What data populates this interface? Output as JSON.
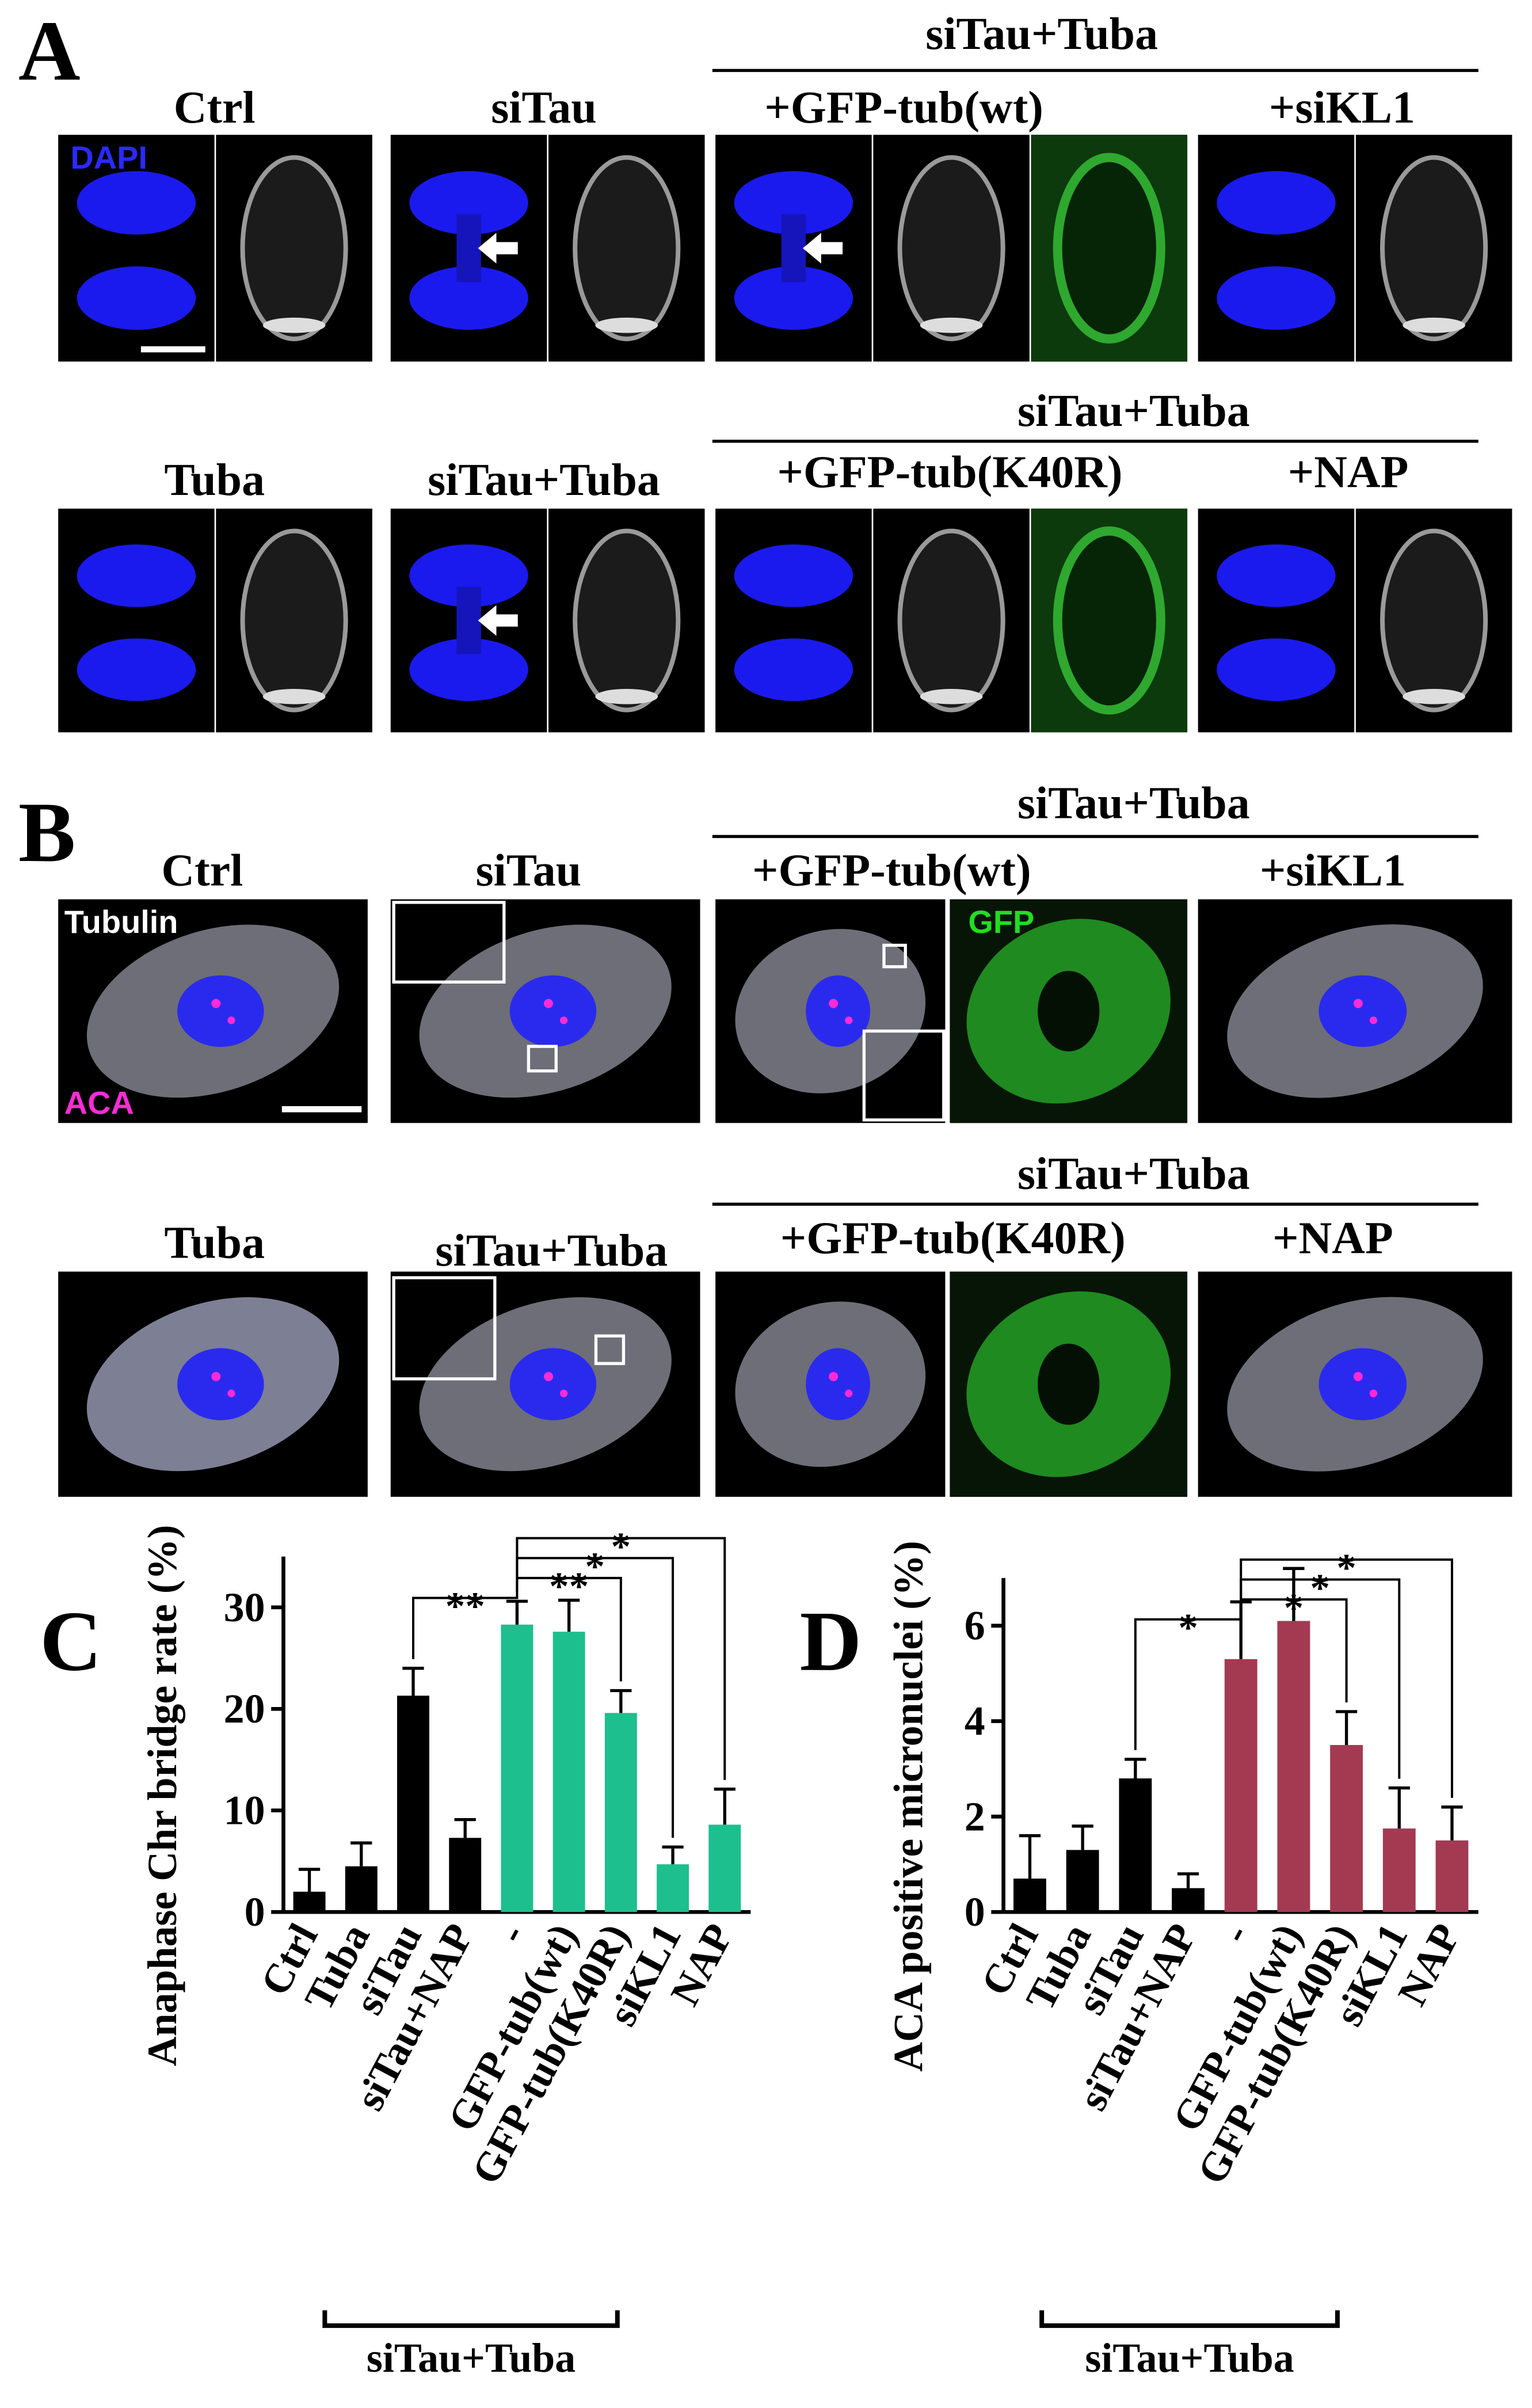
{
  "panel_a": {
    "label": "A",
    "group_headers": [
      "siTau+Tuba",
      "siTau+Tuba"
    ],
    "row1": [
      "Ctrl",
      "siTau",
      "+GFP-tub(wt)",
      "+siKL1"
    ],
    "row2": [
      "Tuba",
      "siTau+Tuba",
      "+GFP-tub(K40R)",
      "+NAP"
    ],
    "stain_labels": [
      "DAPI"
    ]
  },
  "panel_b": {
    "label": "B",
    "group_headers": [
      "siTau+Tuba",
      "siTau+Tuba"
    ],
    "row1": [
      "Ctrl",
      "siTau",
      "+GFP-tub(wt)",
      "+siKL1"
    ],
    "row2": [
      "Tuba",
      "siTau+Tuba",
      "+GFP-tub(K40R)",
      "+NAP"
    ],
    "stain_labels": [
      "Tubulin",
      "ACA",
      "GFP"
    ]
  },
  "chart_data": [
    {
      "type": "bar",
      "panel_label": "C",
      "y_label": "Anaphase Chr bridge rate (%)",
      "categories": [
        "Ctrl",
        "Tuba",
        "siTau",
        "siTau+NAP",
        "-",
        "GFP-tub(wt)",
        "GFP-tub(K40R)",
        "siKL1",
        "NAP"
      ],
      "values": [
        2,
        4.5,
        21.3,
        7.3,
        28.3,
        27.6,
        19.6,
        4.7,
        8.6
      ],
      "errors": [
        2.2,
        2.3,
        2.7,
        1.8,
        2.3,
        3.1,
        2.2,
        1.7,
        3.5
      ],
      "colors": [
        "#000000",
        "#000000",
        "#000000",
        "#000000",
        "#1dbf8e",
        "#1dbf8e",
        "#1dbf8e",
        "#1dbf8e",
        "#1dbf8e"
      ],
      "ylim": [
        0,
        35
      ],
      "yticks": [
        0,
        10,
        20,
        30
      ],
      "significance": [
        {
          "text": "**",
          "from": "siTau",
          "to": "-"
        },
        {
          "text": "**",
          "from": "-",
          "to": "GFP-tub(K40R)"
        },
        {
          "text": "*",
          "from": "-",
          "to": "siKL1"
        },
        {
          "text": "*",
          "from": "-",
          "to": "NAP"
        }
      ],
      "group_label": "siTau+Tuba"
    },
    {
      "type": "bar",
      "panel_label": "D",
      "y_label": "ACA positive micronuclei (%)",
      "categories": [
        "Ctrl",
        "Tuba",
        "siTau",
        "siTau+NAP",
        "-",
        "GFP-tub(wt)",
        "GFP-tub(K40R)",
        "siKL1",
        "NAP"
      ],
      "values": [
        0.7,
        1.3,
        2.8,
        0.5,
        5.3,
        6.1,
        3.5,
        1.75,
        1.5
      ],
      "errors": [
        0.9,
        0.5,
        0.4,
        0.3,
        1.2,
        1.1,
        0.7,
        0.85,
        0.7
      ],
      "colors": [
        "#000000",
        "#000000",
        "#000000",
        "#000000",
        "#a33a52",
        "#a33a52",
        "#a33a52",
        "#a33a52",
        "#a33a52"
      ],
      "ylim": [
        0,
        7
      ],
      "yticks": [
        0,
        2,
        4,
        6
      ],
      "significance": [
        {
          "text": "*",
          "from": "siTau",
          "to": "-"
        },
        {
          "text": "*",
          "from": "-",
          "to": "GFP-tub(K40R)"
        },
        {
          "text": "*",
          "from": "-",
          "to": "siKL1"
        },
        {
          "text": "*",
          "from": "-",
          "to": "NAP"
        }
      ],
      "group_label": "siTau+Tuba"
    }
  ]
}
